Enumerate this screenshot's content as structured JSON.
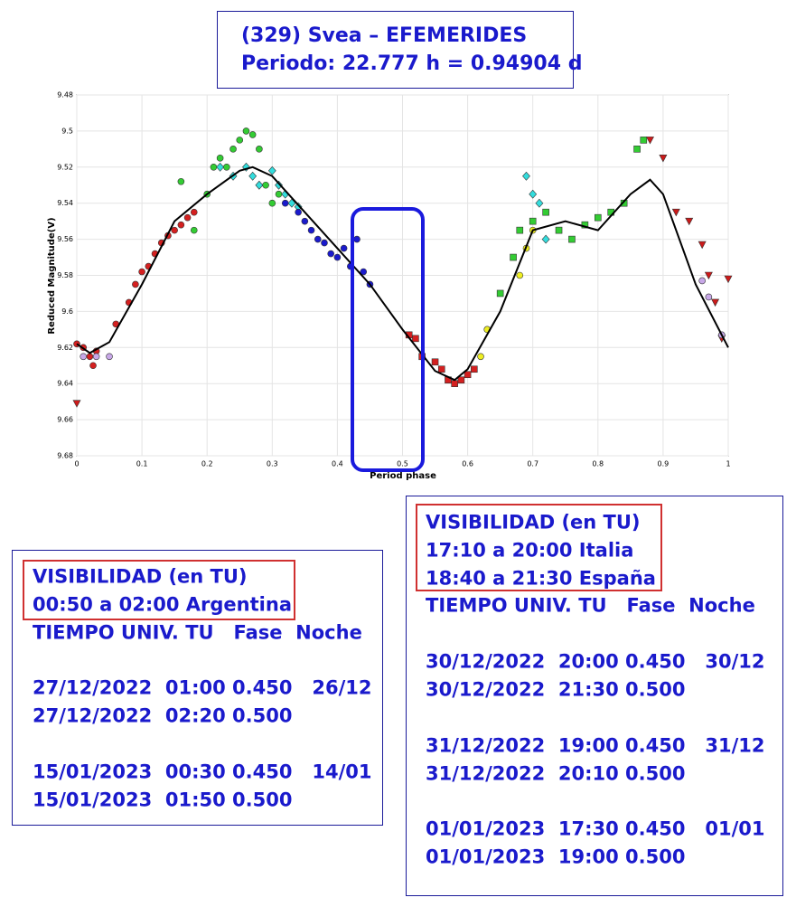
{
  "title_box": {
    "lines": [
      "(329) Svea – EFEMERIDES",
      "Periodo: 22.777 h = 0.94904 d"
    ]
  },
  "chart_data": {
    "type": "scatter",
    "xlabel": "Period phase",
    "ylabel": "Reduced Magnitude(V)",
    "xlim": [
      0,
      1
    ],
    "ylim": [
      9.48,
      9.68
    ],
    "y_inverted": true,
    "xticks": [
      0,
      0.1,
      0.2,
      0.3,
      0.4,
      0.5,
      0.6,
      0.7,
      0.8,
      0.9,
      1
    ],
    "yticks": [
      9.48,
      9.5,
      9.52,
      9.54,
      9.56,
      9.58,
      9.6,
      9.62,
      9.64,
      9.66,
      9.68
    ],
    "grid": true,
    "series": [
      {
        "color": "#d42020",
        "marker": "circle",
        "x": [
          0.0,
          0.01,
          0.02,
          0.025,
          0.03,
          0.06,
          0.08,
          0.09,
          0.1,
          0.11,
          0.12,
          0.13,
          0.14,
          0.15,
          0.16,
          0.17,
          0.18
        ],
        "values": [
          9.618,
          9.62,
          9.625,
          9.63,
          9.622,
          9.607,
          9.595,
          9.585,
          9.578,
          9.575,
          9.568,
          9.562,
          9.558,
          9.555,
          9.552,
          9.548,
          9.545
        ]
      },
      {
        "color": "#33cc33",
        "marker": "circle",
        "x": [
          0.16,
          0.18,
          0.2,
          0.21,
          0.22,
          0.23,
          0.24,
          0.25,
          0.26,
          0.27,
          0.28,
          0.29,
          0.3,
          0.31
        ],
        "values": [
          9.528,
          9.555,
          9.535,
          9.52,
          9.515,
          9.52,
          9.51,
          9.505,
          9.5,
          9.502,
          9.51,
          9.53,
          9.54,
          9.535
        ]
      },
      {
        "color": "#33dddd",
        "marker": "diamond",
        "x": [
          0.22,
          0.24,
          0.26,
          0.27,
          0.28,
          0.3,
          0.31,
          0.32,
          0.33,
          0.34,
          0.69,
          0.7,
          0.71,
          0.72
        ],
        "values": [
          9.52,
          9.525,
          9.52,
          9.525,
          9.53,
          9.522,
          9.53,
          9.535,
          9.54,
          9.542,
          9.525,
          9.535,
          9.54,
          9.56
        ]
      },
      {
        "color": "#1a1acc",
        "marker": "circle",
        "x": [
          0.32,
          0.34,
          0.35,
          0.36,
          0.37,
          0.38,
          0.39,
          0.4,
          0.41,
          0.42,
          0.43,
          0.44,
          0.45
        ],
        "values": [
          9.54,
          9.545,
          9.55,
          9.555,
          9.56,
          9.562,
          9.568,
          9.57,
          9.565,
          9.575,
          9.56,
          9.578,
          9.585
        ]
      },
      {
        "color": "#d42020",
        "marker": "square",
        "x": [
          0.51,
          0.52,
          0.53,
          0.55,
          0.56,
          0.57,
          0.58,
          0.59,
          0.6,
          0.61
        ],
        "values": [
          9.613,
          9.615,
          9.625,
          9.628,
          9.632,
          9.638,
          9.64,
          9.638,
          9.635,
          9.632
        ]
      },
      {
        "color": "#eeee22",
        "marker": "circle",
        "x": [
          0.62,
          0.63,
          0.68,
          0.69,
          0.7
        ],
        "values": [
          9.625,
          9.61,
          9.58,
          9.565,
          9.555
        ]
      },
      {
        "color": "#33cc33",
        "marker": "square",
        "x": [
          0.65,
          0.67,
          0.68,
          0.7,
          0.72,
          0.74,
          0.76,
          0.78,
          0.8,
          0.82,
          0.84,
          0.86,
          0.87
        ],
        "values": [
          9.59,
          9.57,
          9.555,
          9.55,
          9.545,
          9.555,
          9.56,
          9.552,
          9.548,
          9.545,
          9.54,
          9.51,
          9.505
        ]
      },
      {
        "color": "#cc1a1a",
        "marker": "triangle-down",
        "x": [
          0.0,
          0.88,
          0.9,
          0.92,
          0.94,
          0.96,
          0.97,
          0.98,
          0.99,
          1.0
        ],
        "values": [
          9.651,
          9.505,
          9.515,
          9.545,
          9.55,
          9.563,
          9.58,
          9.595,
          9.615,
          9.582
        ]
      },
      {
        "color": "#c8a8e8",
        "marker": "circle",
        "x": [
          0.01,
          0.03,
          0.05,
          0.96,
          0.97,
          0.99
        ],
        "values": [
          9.625,
          9.625,
          9.625,
          9.583,
          9.592,
          9.613
        ]
      },
      {
        "color": "#000000",
        "marker": "line",
        "x": [
          0,
          0.02,
          0.05,
          0.1,
          0.15,
          0.2,
          0.25,
          0.27,
          0.3,
          0.35,
          0.4,
          0.45,
          0.5,
          0.55,
          0.58,
          0.6,
          0.65,
          0.7,
          0.75,
          0.8,
          0.85,
          0.88,
          0.9,
          0.95,
          1
        ],
        "values": [
          9.618,
          9.623,
          9.617,
          9.585,
          9.55,
          9.535,
          9.522,
          9.52,
          9.525,
          9.545,
          9.565,
          9.585,
          9.61,
          9.633,
          9.638,
          9.632,
          9.6,
          9.555,
          9.55,
          9.555,
          9.535,
          9.527,
          9.535,
          9.585,
          9.62
        ]
      }
    ]
  },
  "panels": [
    {
      "highlight": [
        "VISIBILIDAD (en TU)",
        "00:50 a 02:00 Argentina"
      ],
      "header": "TIEMPO UNIV. TU   Fase  Noche",
      "groups": [
        [
          "27/12/2022  01:00 0.450   26/12",
          "27/12/2022  02:20 0.500"
        ],
        [
          "15/01/2023  00:30 0.450   14/01",
          "15/01/2023  01:50 0.500"
        ]
      ]
    },
    {
      "highlight": [
        "VISIBILIDAD (en TU)",
        "17:10 a 20:00 Italia",
        "18:40 a 21:30 España"
      ],
      "header": "TIEMPO UNIV. TU   Fase  Noche",
      "groups": [
        [
          "30/12/2022  20:00 0.450   30/12",
          "30/12/2022  21:30 0.500"
        ],
        [
          "31/12/2022  19:00 0.450   31/12",
          "31/12/2022  20:10 0.500"
        ],
        [
          "01/01/2023  17:30 0.450   01/01",
          "01/01/2023  19:00 0.500"
        ]
      ]
    }
  ]
}
